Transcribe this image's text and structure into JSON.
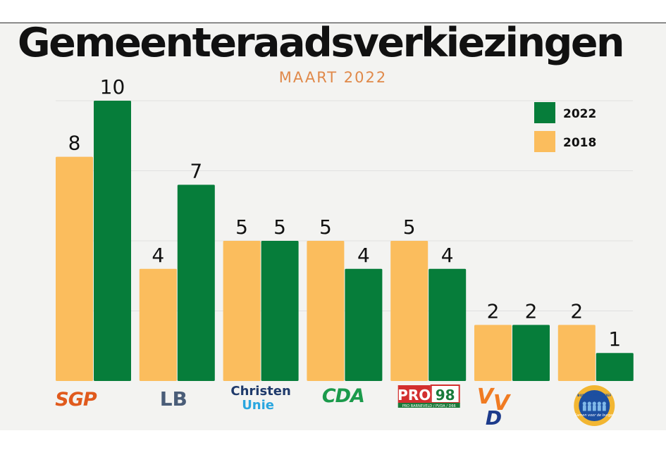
{
  "title": "Gemeenteraadsverkiezingen",
  "subtitle": "MAART 2022",
  "colors": {
    "series_2018": "#fbbd5d",
    "series_2022": "#067d3a",
    "grid": "#e0e0e0",
    "background": "#f3f3f1"
  },
  "chart_data": {
    "type": "bar",
    "title": "Gemeenteraadsverkiezingen",
    "subtitle": "MAART 2022",
    "xlabel": "",
    "ylabel": "",
    "ylim": [
      0,
      10
    ],
    "grid": true,
    "legend_position": "top-right",
    "categories": [
      "SGP",
      "LB",
      "Christen Unie",
      "CDA",
      "PRO 98",
      "VVD",
      "Burger Initiatief"
    ],
    "series": [
      {
        "name": "2018",
        "color": "#fbbd5d",
        "values": [
          8,
          4,
          5,
          5,
          5,
          2,
          2
        ]
      },
      {
        "name": "2022",
        "color": "#067d3a",
        "values": [
          10,
          7,
          5,
          4,
          4,
          2,
          1
        ]
      }
    ],
    "legend": [
      "2022",
      "2018"
    ]
  },
  "logos": [
    {
      "name": "SGP",
      "text": "SGP",
      "color": "#e05a1d"
    },
    {
      "name": "LB",
      "text": "LB",
      "color": "#4a5d78"
    },
    {
      "name": "Christen Unie",
      "line1": "Christen",
      "line2": "Unie",
      "color1": "#1f3a6b",
      "color2": "#2aa6df"
    },
    {
      "name": "CDA",
      "text": "CDA",
      "color": "#1b9a4b"
    },
    {
      "name": "PRO 98",
      "text1": "PRO",
      "text2": "98",
      "tagline": "PRO BARNEVELD / PVDA / D66"
    },
    {
      "name": "VVD",
      "text": "VVD",
      "color1": "#f07b22",
      "color2": "#1d3b8b"
    },
    {
      "name": "Burger Initiatief",
      "ring_text": "BURGER INITIATIEF",
      "script": "Samen voor de burger"
    }
  ]
}
